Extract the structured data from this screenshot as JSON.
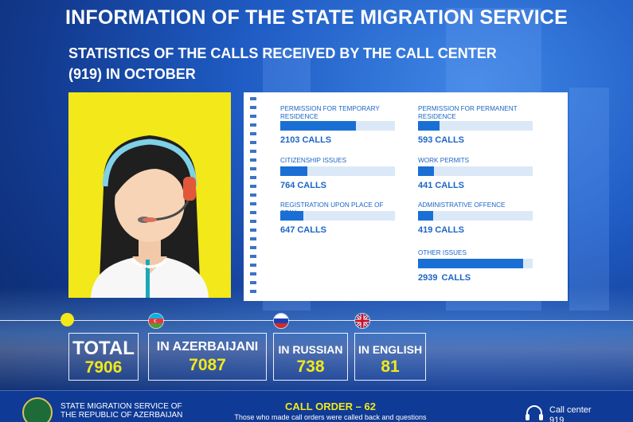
{
  "header": {
    "title": "INFORMATION OF THE STATE MIGRATION SERVICE",
    "subtitle_line1": "STATISTICS OF THE CALLS RECEIVED BY THE CALL CENTER",
    "subtitle_line2": "(919) IN OCTOBER"
  },
  "stats": [
    {
      "label": "PERMISSION FOR TEMPORARY RESIDENCE",
      "value": "2103",
      "unit": "CALLS"
    },
    {
      "label": "PERMISSION FOR PERMANENT RESIDENCE",
      "value": "593",
      "unit": "CALLS"
    },
    {
      "label": "CITIZENSHIP ISSUES",
      "value": "764",
      "unit": "CALLS"
    },
    {
      "label": "WORK PERMITS",
      "value": "441",
      "unit": "CALLS"
    },
    {
      "label": "REGISTRATION UPON PLACE OF STAY",
      "value": "647",
      "unit": "CALLS"
    },
    {
      "label": "ADMINISTRATIVE OFFENCE",
      "value": "419",
      "unit": "CALLS"
    },
    {
      "label": "OTHER ISSUES",
      "value": "2939",
      "unit": "CALLS"
    }
  ],
  "totals": {
    "total_label": "TOTAL",
    "total_value": "7906",
    "az_label": "IN AZERBAIJANI",
    "az_value": "7087",
    "ru_label": "IN RUSSIAN",
    "ru_value": "738",
    "en_label": "IN ENGLISH",
    "en_value": "81"
  },
  "footer": {
    "org_line1": "STATE MIGRATION SERVICE OF",
    "org_line2": "THE REPUBLIC OF AZERBAIJAN",
    "call_order": "CALL ORDER – 62",
    "call_order_sub": "Those who made call orders were called back and questions",
    "call_center_label": "Call center",
    "call_center_number": "919"
  },
  "colors": {
    "accent_yellow": "#f2e81a",
    "bar_blue": "#1a6fd4",
    "background_blue": "#1f5cc4"
  },
  "icons": [
    "operator-illustration",
    "azerbaijan-flag-icon",
    "russia-flag-icon",
    "uk-flag-icon",
    "headset-icon",
    "state-seal-icon"
  ]
}
